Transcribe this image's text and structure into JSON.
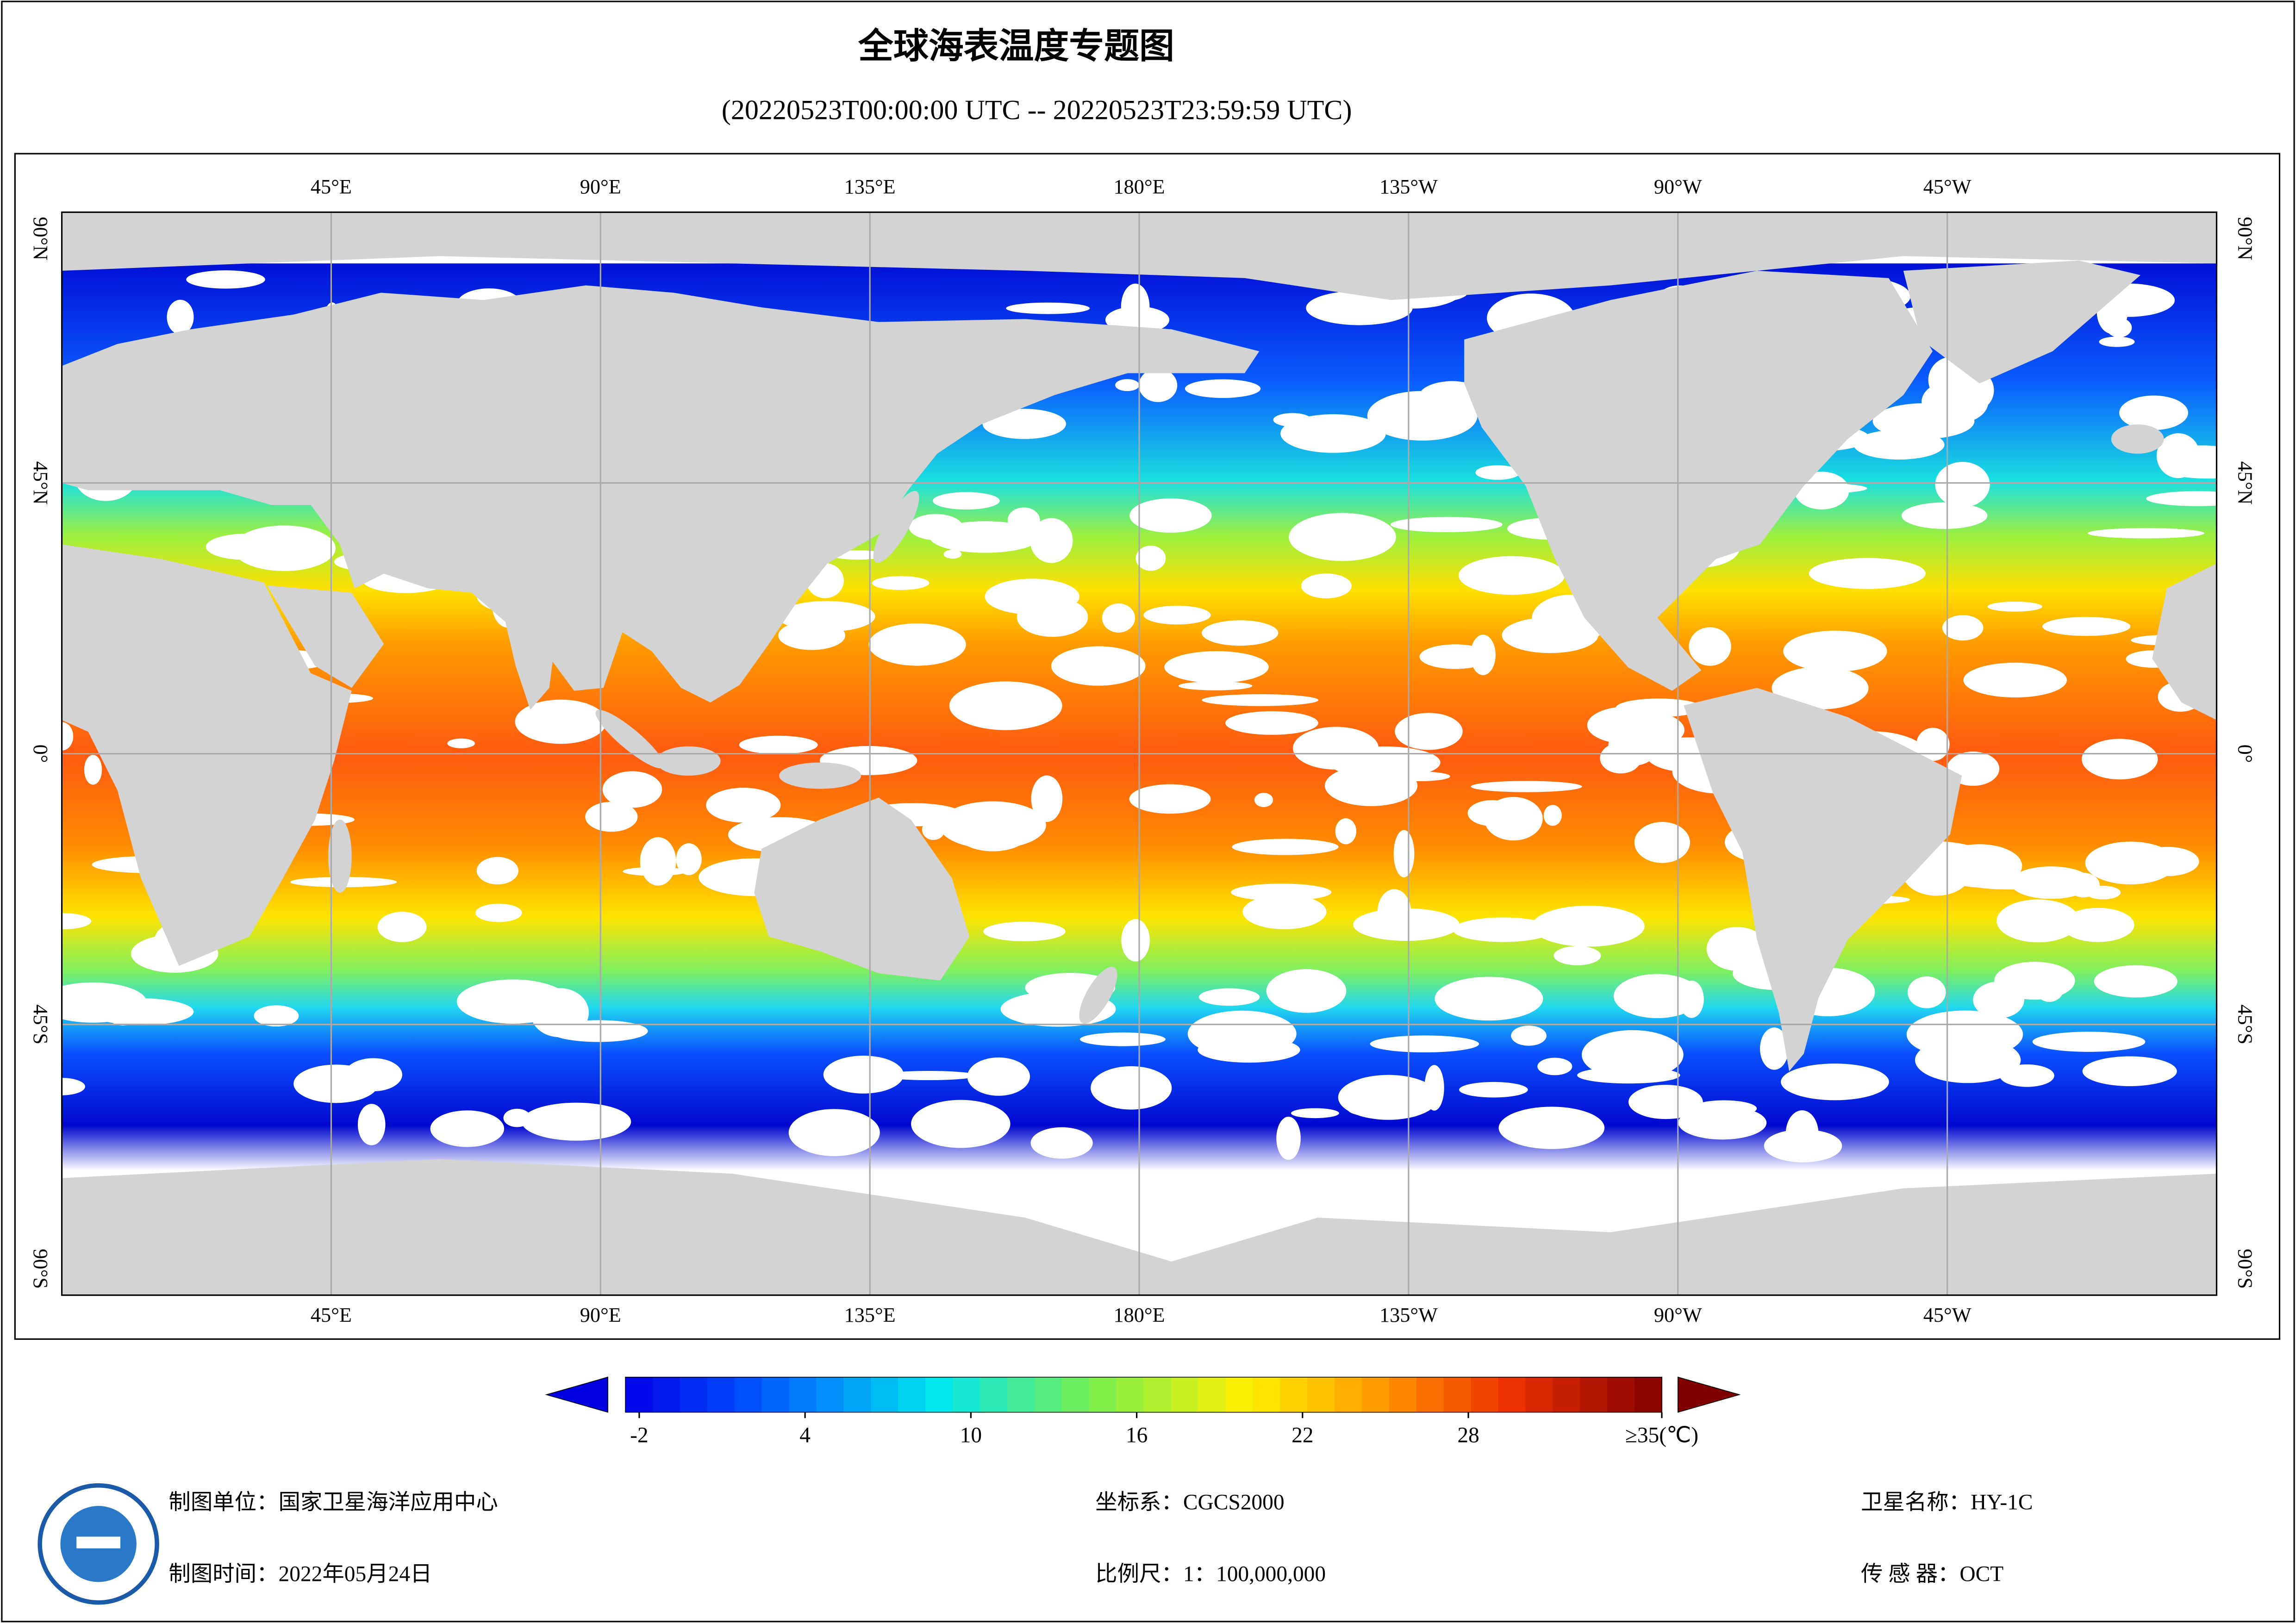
{
  "header": {
    "title": "全球海表温度专题图",
    "subtitle": "(20220523T00:00:00 UTC -- 20220523T23:59:59 UTC)"
  },
  "map": {
    "lon_range": [
      0,
      360
    ],
    "lat_range": [
      -90,
      90
    ],
    "longitudes": [
      {
        "value": 45,
        "label": "45°E"
      },
      {
        "value": 90,
        "label": "90°E"
      },
      {
        "value": 135,
        "label": "135°E"
      },
      {
        "value": 180,
        "label": "180°E"
      },
      {
        "value": 225,
        "label": "135°W"
      },
      {
        "value": 270,
        "label": "90°W"
      },
      {
        "value": 315,
        "label": "45°W"
      }
    ],
    "latitudes": [
      {
        "value": 90,
        "label": "90°N"
      },
      {
        "value": 45,
        "label": "45°N"
      },
      {
        "value": 0,
        "label": "0°"
      },
      {
        "value": -45,
        "label": "45°S"
      },
      {
        "value": -90,
        "label": "90°S"
      }
    ]
  },
  "colorbar": {
    "range": [
      -2.5,
      35
    ],
    "ticks": [
      -2,
      4,
      10,
      16,
      22,
      28
    ],
    "max_label": {
      "value": 35,
      "label": "≥35(℃)"
    }
  },
  "footer": {
    "unit": "制图单位：国家卫星海洋应用中心",
    "date": "制图时间：2022年05月24日",
    "crs": "坐标系：CGCS2000",
    "scale": "比例尺：1：100,000,000",
    "satellite": "卫星名称：HY-1C",
    "sensor": "传  感  器：OCT"
  }
}
